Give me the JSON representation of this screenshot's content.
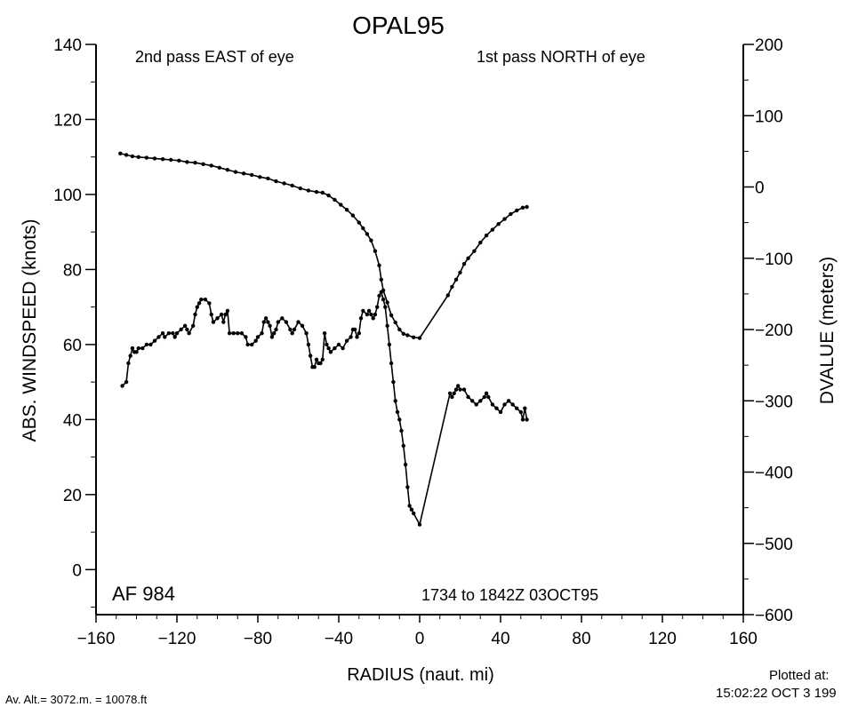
{
  "chart_data": {
    "type": "line",
    "title": "OPAL95",
    "xlabel": "RADIUS (naut. mi)",
    "ylabel_left": "ABS. WINDSPEED (knots)",
    "ylabel_right": "DVALUE (meters)",
    "xlim": [
      -160,
      160
    ],
    "ylim_left": [
      -12,
      140
    ],
    "ylim_right": [
      -600,
      200
    ],
    "x_ticks": [
      -160,
      -120,
      -80,
      -40,
      0,
      40,
      80,
      120,
      160
    ],
    "x_tick_labels": [
      "−160",
      "−120",
      "−80",
      "−40",
      "0",
      "40",
      "80",
      "120",
      "160"
    ],
    "left_ticks": [
      0,
      20,
      40,
      60,
      80,
      100,
      120,
      140
    ],
    "left_tick_labels": [
      "0",
      "20",
      "40",
      "60",
      "80",
      "100",
      "120",
      "140"
    ],
    "right_ticks": [
      -600,
      -500,
      -400,
      -300,
      -200,
      -100,
      0,
      100,
      200
    ],
    "right_tick_labels": [
      "−600",
      "−500",
      "−400",
      "−300",
      "−200",
      "−100",
      "0",
      "100",
      "200"
    ],
    "annotations": {
      "left_top": "2nd pass EAST of eye",
      "right_top": "1st pass NORTH of eye",
      "aircraft": "AF 984",
      "time_range": "1734 to 1842Z 03OCT95"
    },
    "series": [
      {
        "axis": "right",
        "points": [
          [
            -148,
            47
          ],
          [
            -145,
            45
          ],
          [
            -142,
            43
          ],
          [
            -139,
            42
          ],
          [
            -135,
            41
          ],
          [
            -131,
            40
          ],
          [
            -127,
            39
          ],
          [
            -123,
            38
          ],
          [
            -119,
            37
          ],
          [
            -115,
            35
          ],
          [
            -111,
            34
          ],
          [
            -107,
            32
          ],
          [
            -103,
            30
          ],
          [
            -99,
            27
          ],
          [
            -95,
            24
          ],
          [
            -91,
            21
          ],
          [
            -87,
            19
          ],
          [
            -83,
            17
          ],
          [
            -79,
            14
          ],
          [
            -75,
            12
          ],
          [
            -71,
            8
          ],
          [
            -67,
            5
          ],
          [
            -63,
            2
          ],
          [
            -59,
            -2
          ],
          [
            -55,
            -5
          ],
          [
            -51,
            -7
          ],
          [
            -48,
            -8
          ],
          [
            -45,
            -12
          ],
          [
            -42,
            -18
          ],
          [
            -39,
            -25
          ],
          [
            -36,
            -32
          ],
          [
            -33,
            -40
          ],
          [
            -30,
            -50
          ],
          [
            -28,
            -58
          ],
          [
            -26,
            -66
          ],
          [
            -24,
            -75
          ],
          [
            -22,
            -90
          ],
          [
            -20,
            -110
          ],
          [
            -19,
            -130
          ],
          [
            -18,
            -145
          ],
          [
            -16,
            -162
          ],
          [
            -14,
            -180
          ],
          [
            -12,
            -190
          ],
          [
            -10,
            -200
          ],
          [
            -8,
            -206
          ],
          [
            -6,
            -208
          ],
          [
            -3,
            -211
          ],
          [
            0,
            -212
          ],
          [
            14,
            -152
          ],
          [
            16,
            -140
          ],
          [
            18,
            -130
          ],
          [
            20,
            -120
          ],
          [
            22,
            -108
          ],
          [
            24,
            -100
          ],
          [
            27,
            -90
          ],
          [
            30,
            -78
          ],
          [
            33,
            -68
          ],
          [
            36,
            -60
          ],
          [
            39,
            -52
          ],
          [
            42,
            -45
          ],
          [
            45,
            -38
          ],
          [
            48,
            -33
          ],
          [
            51,
            -29
          ],
          [
            53,
            -28
          ]
        ]
      },
      {
        "axis": "left",
        "points": [
          [
            -147,
            49
          ],
          [
            -145,
            50
          ],
          [
            -144,
            55
          ],
          [
            -143,
            57
          ],
          [
            -142,
            59
          ],
          [
            -141,
            58
          ],
          [
            -140,
            58
          ],
          [
            -139,
            59
          ],
          [
            -137,
            59
          ],
          [
            -135,
            60
          ],
          [
            -133,
            60
          ],
          [
            -131,
            61
          ],
          [
            -129,
            62
          ],
          [
            -127,
            63
          ],
          [
            -126,
            62
          ],
          [
            -124,
            63
          ],
          [
            -122,
            63
          ],
          [
            -121,
            62
          ],
          [
            -120,
            63
          ],
          [
            -118,
            64
          ],
          [
            -116,
            65
          ],
          [
            -115,
            64
          ],
          [
            -114,
            63
          ],
          [
            -112,
            65
          ],
          [
            -111,
            68
          ],
          [
            -110,
            70
          ],
          [
            -109,
            71
          ],
          [
            -108,
            72
          ],
          [
            -106,
            72
          ],
          [
            -104,
            71
          ],
          [
            -103,
            68
          ],
          [
            -102,
            66
          ],
          [
            -100,
            67
          ],
          [
            -98,
            68
          ],
          [
            -97,
            66
          ],
          [
            -96,
            68
          ],
          [
            -95,
            69
          ],
          [
            -94,
            63
          ],
          [
            -92,
            63
          ],
          [
            -90,
            63
          ],
          [
            -88,
            63
          ],
          [
            -86,
            62
          ],
          [
            -85,
            60
          ],
          [
            -83,
            60
          ],
          [
            -81,
            61
          ],
          [
            -80,
            62
          ],
          [
            -78,
            63
          ],
          [
            -77,
            66
          ],
          [
            -76,
            67
          ],
          [
            -75,
            66
          ],
          [
            -74,
            65
          ],
          [
            -73,
            62
          ],
          [
            -72,
            63
          ],
          [
            -71,
            64
          ],
          [
            -70,
            66
          ],
          [
            -68,
            67
          ],
          [
            -66,
            66
          ],
          [
            -64,
            64
          ],
          [
            -63,
            63
          ],
          [
            -62,
            64
          ],
          [
            -60,
            66
          ],
          [
            -58,
            65
          ],
          [
            -56,
            63
          ],
          [
            -55,
            60
          ],
          [
            -54,
            57
          ],
          [
            -53,
            54
          ],
          [
            -52,
            54
          ],
          [
            -51,
            56
          ],
          [
            -50,
            55
          ],
          [
            -49,
            55
          ],
          [
            -48,
            56
          ],
          [
            -47,
            63
          ],
          [
            -46,
            60
          ],
          [
            -45,
            59
          ],
          [
            -44,
            58
          ],
          [
            -42,
            59
          ],
          [
            -40,
            60
          ],
          [
            -38,
            59
          ],
          [
            -36,
            61
          ],
          [
            -34,
            62
          ],
          [
            -33,
            64
          ],
          [
            -32,
            64
          ],
          [
            -31,
            62
          ],
          [
            -30,
            63
          ],
          [
            -29,
            67
          ],
          [
            -28,
            69
          ],
          [
            -26,
            68
          ],
          [
            -25,
            69
          ],
          [
            -24,
            68
          ],
          [
            -23,
            67
          ],
          [
            -22,
            68
          ],
          [
            -21,
            70
          ],
          [
            -20,
            73
          ],
          [
            -19,
            74
          ],
          [
            -18,
            72
          ],
          [
            -17,
            70
          ],
          [
            -16,
            65
          ],
          [
            -15,
            60
          ],
          [
            -14,
            55
          ],
          [
            -13,
            50
          ],
          [
            -12,
            45
          ],
          [
            -11,
            42
          ],
          [
            -10,
            40
          ],
          [
            -9,
            37
          ],
          [
            -8,
            33
          ],
          [
            -7,
            28
          ],
          [
            -6,
            22
          ],
          [
            -5,
            17
          ],
          [
            -4,
            16
          ],
          [
            -3,
            15
          ],
          [
            0,
            12
          ],
          [
            15,
            47
          ],
          [
            16,
            46
          ],
          [
            17,
            47
          ],
          [
            18,
            48
          ],
          [
            19,
            49
          ],
          [
            20,
            48
          ],
          [
            22,
            48
          ],
          [
            24,
            46
          ],
          [
            26,
            45
          ],
          [
            28,
            44
          ],
          [
            30,
            45
          ],
          [
            32,
            46
          ],
          [
            33,
            47
          ],
          [
            34,
            46
          ],
          [
            36,
            44
          ],
          [
            38,
            43
          ],
          [
            40,
            42
          ],
          [
            42,
            44
          ],
          [
            44,
            45
          ],
          [
            46,
            44
          ],
          [
            48,
            43
          ],
          [
            50,
            42
          ],
          [
            51,
            40
          ],
          [
            52,
            43
          ],
          [
            53,
            40
          ]
        ]
      }
    ]
  },
  "footer": {
    "avg_alt": "Av. Alt.= 3072.m. = 10078.ft",
    "plotted_label": "Plotted at:",
    "plotted_time": "15:02:22 OCT  3 199"
  }
}
